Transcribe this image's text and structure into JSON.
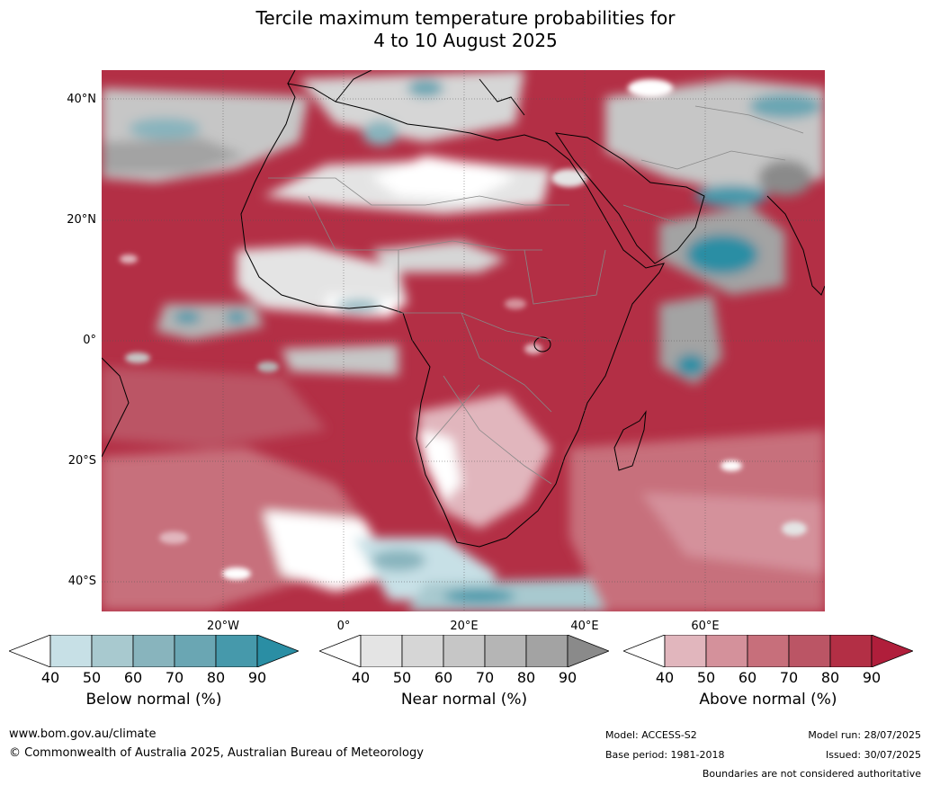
{
  "title": {
    "line1": "Tercile maximum temperature probabilities for",
    "line2": "4 to 10 August 2025"
  },
  "map": {
    "lat_labels": [
      "40°N",
      "20°N",
      "0°",
      "20°S",
      "40°S"
    ],
    "lon_labels": [
      "20°W",
      "0°",
      "20°E",
      "40°E",
      "60°E"
    ],
    "colors": {
      "above": [
        "#e1b6bd",
        "#d4919b",
        "#c76f7b",
        "#bb5565",
        "#b32f45",
        "#b01e3b"
      ],
      "below": [
        "#c7e0e6",
        "#a8c9cf",
        "#88b4bd",
        "#6aa6b3",
        "#4699ab",
        "#2a8ea4"
      ],
      "near": [
        "#e4e4e4",
        "#d6d6d6",
        "#c6c6c6",
        "#b5b5b5",
        "#a3a3a3",
        "#8a8a8a"
      ],
      "ocean_base": "#b5223f",
      "land_outline": "#000000",
      "border": "#888888"
    }
  },
  "colorbars": [
    {
      "name": "below",
      "title": "Below normal (%)",
      "ticks": [
        "40",
        "50",
        "60",
        "70",
        "80",
        "90"
      ],
      "colors": [
        "#ffffff",
        "#c7e0e6",
        "#a8c9cf",
        "#88b4bd",
        "#6aa6b3",
        "#4699ab",
        "#2a8ea4"
      ]
    },
    {
      "name": "near",
      "title": "Near normal (%)",
      "ticks": [
        "40",
        "50",
        "60",
        "70",
        "80",
        "90"
      ],
      "colors": [
        "#ffffff",
        "#e4e4e4",
        "#d6d6d6",
        "#c6c6c6",
        "#b5b5b5",
        "#a3a3a3",
        "#8a8a8a"
      ]
    },
    {
      "name": "above",
      "title": "Above normal (%)",
      "ticks": [
        "40",
        "50",
        "60",
        "70",
        "80",
        "90"
      ],
      "colors": [
        "#ffffff",
        "#e1b6bd",
        "#d4919b",
        "#c76f7b",
        "#bb5565",
        "#b32f45",
        "#b01e3b"
      ]
    }
  ],
  "footer": {
    "website": "www.bom.gov.au/climate",
    "copyright": "© Commonwealth of Australia 2025, Australian Bureau of Meteorology",
    "model": "Model: ACCESS-S2",
    "base_period": "Base period: 1981-2018",
    "model_run": "Model run: 28/07/2025",
    "issued": "Issued: 30/07/2025",
    "disclaimer": "Boundaries are not considered authoritative"
  }
}
